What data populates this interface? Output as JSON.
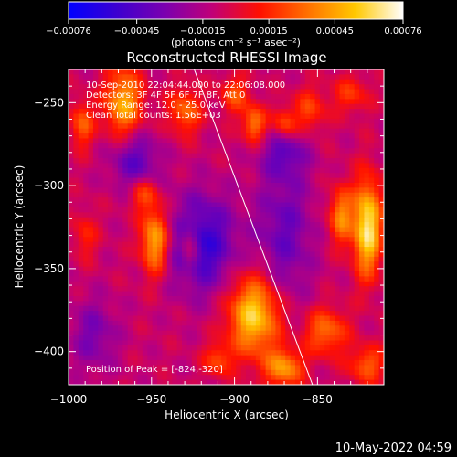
{
  "chart_data": {
    "type": "heatmap",
    "title": "Reconstructed RHESSI Image",
    "xlabel": "Heliocentric X (arcsec)",
    "ylabel": "Heliocentric Y (arcsec)",
    "xlim": [
      -1000,
      -810
    ],
    "ylim": [
      -420,
      -230
    ],
    "x_ticks": [
      -1000,
      -950,
      -900,
      -850
    ],
    "y_ticks": [
      -250,
      -300,
      -350,
      -400
    ],
    "x_tick_labels": [
      "−1000",
      "−950",
      "−900",
      "−850"
    ],
    "y_tick_labels": [
      "−250",
      "−300",
      "−350",
      "−400"
    ],
    "colorbar": {
      "range": [
        -0.00076,
        0.00076
      ],
      "tick_values": [
        -0.00076,
        -0.00045,
        -0.00015,
        0.00015,
        0.00045,
        0.00076
      ],
      "tick_labels": [
        "−0.00076",
        "−0.00045",
        "−0.00015",
        "0.00015",
        "0.00045",
        "0.00076"
      ],
      "units_label": "(photons cm⁻² s⁻¹ asec⁻²)",
      "stops": [
        "#0000ff",
        "#3c00d0",
        "#7a00b0",
        "#c00078",
        "#ff1000",
        "#ff7000",
        "#ffc800",
        "#ffffff"
      ]
    },
    "annotations": [
      "10-Sep-2010 22:04:44.000 to 22:06:08.000",
      "Detectors: 3F 4F 5F 6F 7F 8F, Att 0",
      "Energy Range: 12.0 - 25.0 keV",
      "Clean     Total counts: 1.56E+03"
    ],
    "peak_label": "Position of Peak = [-824,-320]",
    "footer_date": "10-May-2022 04:59",
    "limb_line": [
      [
        -925,
        -228
      ],
      [
        -853,
        -420
      ]
    ],
    "hot_regions": [
      {
        "x": -967,
        "y": -250,
        "sx": 8,
        "sy": 15,
        "v": 0.00055
      },
      {
        "x": -992,
        "y": -263,
        "sx": 5,
        "sy": 10,
        "v": 0.00035
      },
      {
        "x": -955,
        "y": -305,
        "sx": 6,
        "sy": 7,
        "v": 0.0003
      },
      {
        "x": -948,
        "y": -333,
        "sx": 6,
        "sy": 14,
        "v": 0.0006
      },
      {
        "x": -927,
        "y": -336,
        "sx": 4,
        "sy": 10,
        "v": 0.00035
      },
      {
        "x": -930,
        "y": -255,
        "sx": 7,
        "sy": 10,
        "v": 0.00038
      },
      {
        "x": -900,
        "y": -245,
        "sx": 6,
        "sy": 8,
        "v": 0.00032
      },
      {
        "x": -888,
        "y": -263,
        "sx": 5,
        "sy": 8,
        "v": 0.00045
      },
      {
        "x": -870,
        "y": -263,
        "sx": 5,
        "sy": 7,
        "v": 0.00035
      },
      {
        "x": -855,
        "y": -255,
        "sx": 7,
        "sy": 10,
        "v": 0.00028
      },
      {
        "x": -830,
        "y": -245,
        "sx": 8,
        "sy": 8,
        "v": 0.00025
      },
      {
        "x": -820,
        "y": -325,
        "sx": 6,
        "sy": 20,
        "v": 0.00076
      },
      {
        "x": -836,
        "y": -318,
        "sx": 5,
        "sy": 12,
        "v": 0.00045
      },
      {
        "x": -845,
        "y": -388,
        "sx": 9,
        "sy": 10,
        "v": 0.0004
      },
      {
        "x": -820,
        "y": -408,
        "sx": 8,
        "sy": 8,
        "v": 0.00035
      },
      {
        "x": -888,
        "y": -378,
        "sx": 11,
        "sy": 17,
        "v": 0.00068
      },
      {
        "x": -870,
        "y": -410,
        "sx": 8,
        "sy": 8,
        "v": 0.0005
      },
      {
        "x": -910,
        "y": -405,
        "sx": 6,
        "sy": 7,
        "v": 0.0003
      },
      {
        "x": -990,
        "y": -330,
        "sx": 5,
        "sy": 10,
        "v": 0.00022
      }
    ],
    "cold_regions": [
      {
        "x": -920,
        "y": -335,
        "sx": 14,
        "sy": 20,
        "v": -0.0005
      },
      {
        "x": -960,
        "y": -285,
        "sx": 10,
        "sy": 12,
        "v": -0.00035
      },
      {
        "x": -870,
        "y": -330,
        "sx": 12,
        "sy": 30,
        "v": -0.0003
      },
      {
        "x": -985,
        "y": -390,
        "sx": 10,
        "sy": 15,
        "v": -0.00025
      },
      {
        "x": -870,
        "y": -280,
        "sx": 10,
        "sy": 10,
        "v": -0.00028
      }
    ],
    "grid": false,
    "legend": "none"
  }
}
